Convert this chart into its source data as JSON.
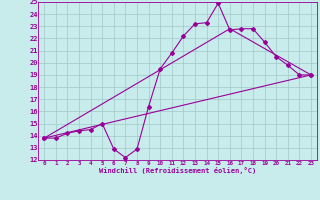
{
  "xlabel": "Windchill (Refroidissement éolien,°C)",
  "bg_color": "#c8ecec",
  "line_color": "#990099",
  "grid_color": "#a0c8c8",
  "xlim": [
    -0.5,
    23.5
  ],
  "ylim": [
    12,
    25
  ],
  "xticks": [
    0,
    1,
    2,
    3,
    4,
    5,
    6,
    7,
    8,
    9,
    10,
    11,
    12,
    13,
    14,
    15,
    16,
    17,
    18,
    19,
    20,
    21,
    22,
    23
  ],
  "yticks": [
    12,
    13,
    14,
    15,
    16,
    17,
    18,
    19,
    20,
    21,
    22,
    23,
    24,
    25
  ],
  "line1_x": [
    0,
    1,
    2,
    3,
    4,
    5,
    6,
    7,
    8,
    9,
    10,
    11,
    12,
    13,
    14,
    15,
    16,
    17,
    18,
    19,
    20,
    21,
    22,
    23
  ],
  "line1_y": [
    13.8,
    13.8,
    14.2,
    14.4,
    14.5,
    15.0,
    12.9,
    12.2,
    12.9,
    16.4,
    19.5,
    20.8,
    22.2,
    23.2,
    23.3,
    24.9,
    22.7,
    22.8,
    22.8,
    21.7,
    20.5,
    19.8,
    19.0,
    19.0
  ],
  "line2_x": [
    0,
    23
  ],
  "line2_y": [
    13.8,
    19.0
  ],
  "line3_x": [
    0,
    16,
    23
  ],
  "line3_y": [
    13.8,
    22.8,
    19.0
  ]
}
